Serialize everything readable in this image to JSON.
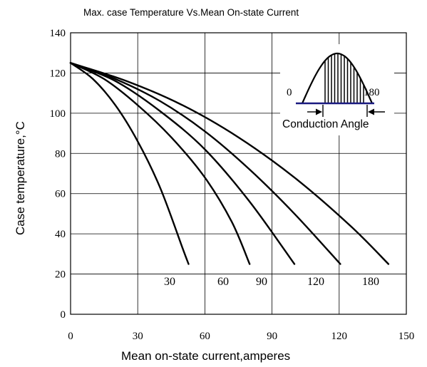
{
  "chart_data": {
    "type": "line",
    "title": "Max. case Temperature Vs.Mean On-state Current",
    "xlabel": "Mean on-state current,amperes",
    "ylabel": "Case temperature,°C",
    "xlim": [
      0,
      150
    ],
    "ylim": [
      0,
      140
    ],
    "xticks": [
      0,
      30,
      60,
      90,
      120,
      150
    ],
    "yticks": [
      0,
      20,
      40,
      60,
      80,
      100,
      120,
      140
    ],
    "grid": true,
    "series": [
      {
        "name": "30",
        "x": [
          0,
          10,
          20,
          30,
          40,
          50,
          52.7
        ],
        "y": [
          125,
          117,
          104,
          86,
          63,
          33,
          25
        ]
      },
      {
        "name": "60",
        "x": [
          0,
          15,
          30,
          45,
          60,
          72,
          80
        ],
        "y": [
          125,
          117,
          104,
          88,
          68,
          46,
          25
        ]
      },
      {
        "name": "90",
        "x": [
          0,
          20,
          40,
          60,
          80,
          100
        ],
        "y": [
          125,
          116,
          101,
          82,
          56,
          25
        ]
      },
      {
        "name": "120",
        "x": [
          0,
          20,
          40,
          60,
          80,
          100,
          120.5
        ],
        "y": [
          125,
          117,
          106,
          91,
          72,
          50,
          25
        ]
      },
      {
        "name": "180",
        "x": [
          0,
          25,
          50,
          75,
          100,
          125,
          142
        ],
        "y": [
          125,
          116,
          104,
          88,
          68,
          44,
          25
        ]
      }
    ],
    "inset": {
      "left_label": "0",
      "right_label": "180",
      "caption": "Conduction Angle"
    }
  }
}
